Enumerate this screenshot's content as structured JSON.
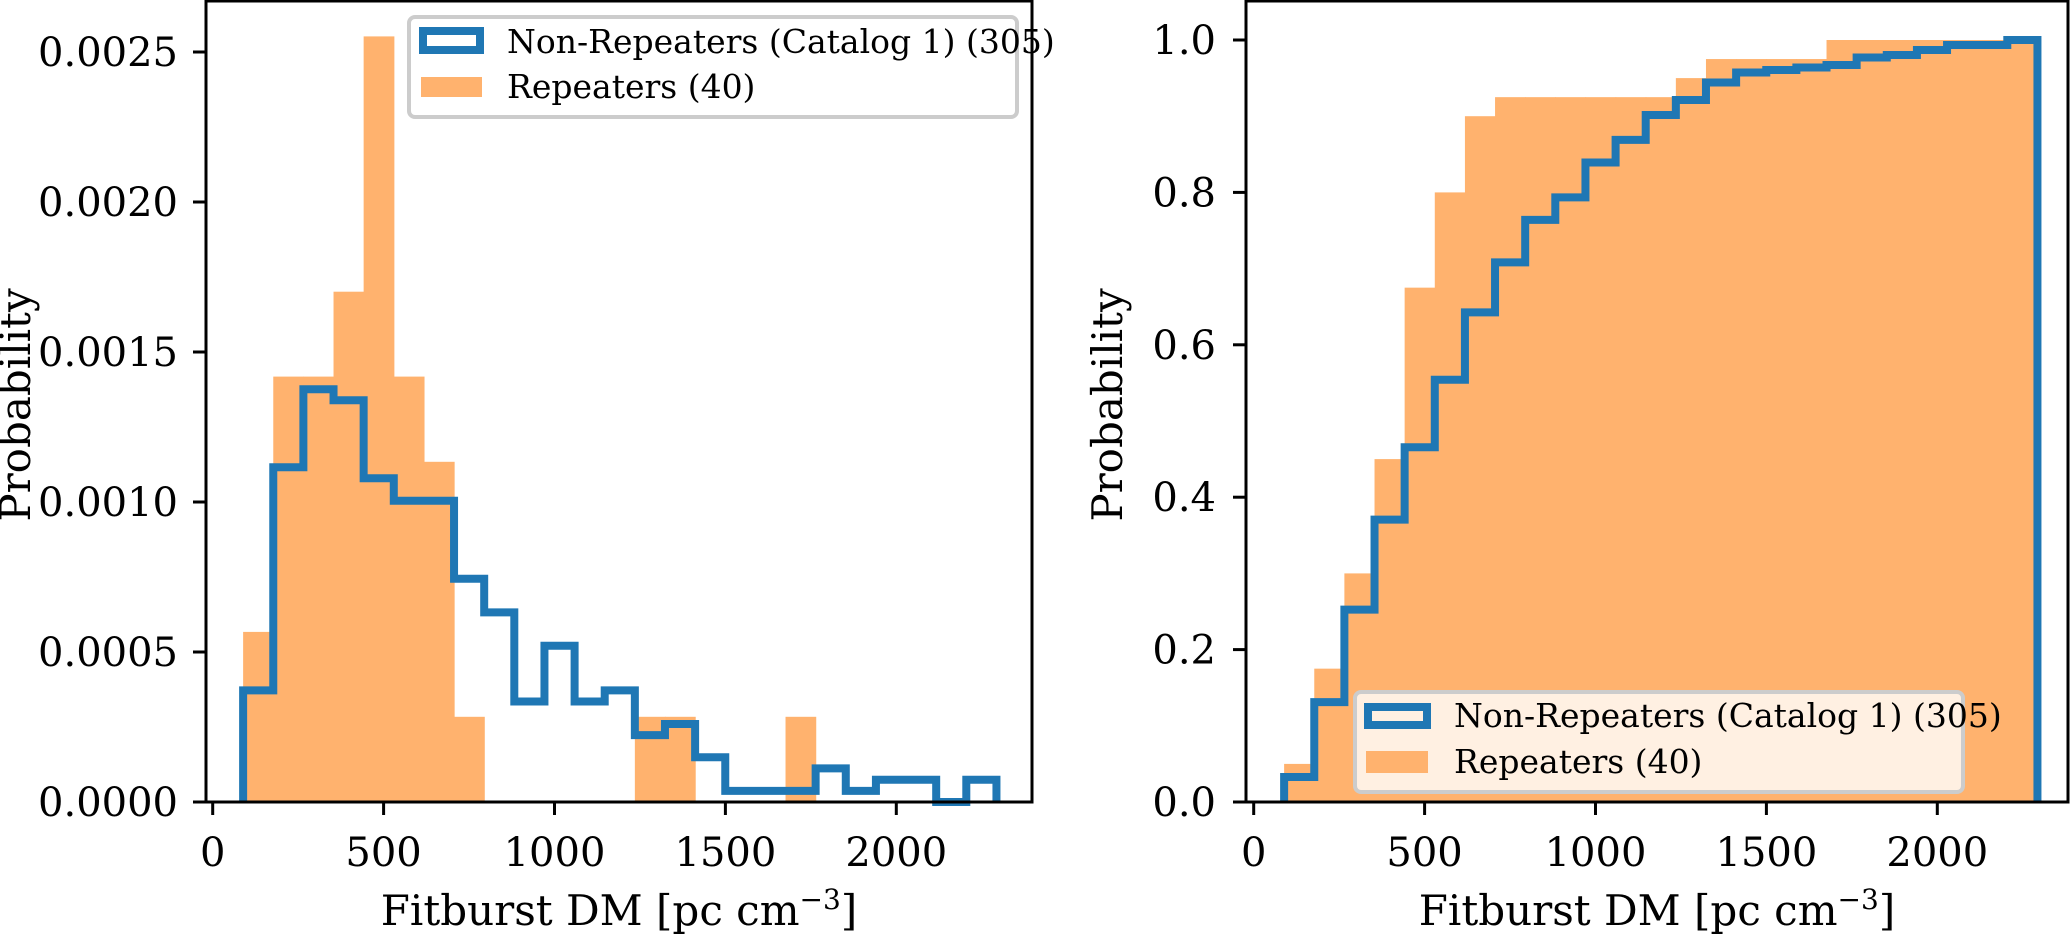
{
  "chart_data": [
    {
      "type": "bar",
      "title": "",
      "xlabel": "Fitburst DM [pc cm",
      "xlabel_sup": "−3",
      "xlabel_end": "]",
      "ylabel": "Probability",
      "xlim": [
        -30,
        2380
      ],
      "ylim": [
        0,
        0.00267
      ],
      "xticks": [
        0,
        500,
        1000,
        1500,
        2000
      ],
      "xtick_labels": [
        "0",
        "500",
        "1000",
        "1500",
        "2000"
      ],
      "yticks": [
        0,
        0.0005,
        0.001,
        0.0015,
        0.002,
        0.0025
      ],
      "ytick_labels": [
        "0.0000",
        "0.0005",
        "0.0010",
        "0.0015",
        "0.0020",
        "0.0025"
      ],
      "legend_placement": "top-right",
      "bin_edges": [
        89,
        177.2,
        265.3,
        353.5,
        441.6,
        529.8,
        618.0,
        706.1,
        794.3,
        882.4,
        970.6,
        1058.8,
        1146.9,
        1235.1,
        1323.2,
        1411.4,
        1499.6,
        1587.7,
        1675.9,
        1764.0,
        1852.2,
        1940.4,
        2028.5,
        2116.7,
        2204.8,
        2293.0
      ],
      "series": [
        {
          "name": "Non-Repeaters (Catalog 1) (305)",
          "style": "step",
          "color": "#1f77b4",
          "values": [
            0.000372,
            0.001116,
            0.001376,
            0.001339,
            0.001079,
            0.001004,
            0.001004,
            0.000744,
            0.000632,
            0.000335,
            0.000521,
            0.000335,
            0.000372,
            0.000223,
            0.00026,
            0.000149,
            3.7e-05,
            3.7e-05,
            3.7e-05,
            0.000112,
            3.7e-05,
            7.4e-05,
            7.4e-05,
            0,
            7.4e-05
          ]
        },
        {
          "name": "Repeaters (40)",
          "style": "filled",
          "color": "#ffb26e",
          "values": [
            0.000567,
            0.001418,
            0.001418,
            0.001701,
            0.002552,
            0.001418,
            0.001134,
            0.000284,
            0,
            0,
            0,
            0,
            0,
            0.000284,
            0.000284,
            0,
            0,
            0,
            0.000284,
            0,
            0,
            0,
            0,
            0,
            0
          ]
        }
      ]
    },
    {
      "type": "bar",
      "title": "",
      "xlabel": "Fitburst DM [pc cm",
      "xlabel_sup": "−3",
      "xlabel_end": "]",
      "ylabel": "Probability",
      "xlim": [
        -30,
        2380
      ],
      "ylim": [
        0,
        1.05
      ],
      "xticks": [
        0,
        500,
        1000,
        1500,
        2000
      ],
      "xtick_labels": [
        "0",
        "500",
        "1000",
        "1500",
        "2000"
      ],
      "yticks": [
        0,
        0.2,
        0.4,
        0.6,
        0.8,
        1.0
      ],
      "ytick_labels": [
        "0.0",
        "0.2",
        "0.4",
        "0.6",
        "0.8",
        "1.0"
      ],
      "legend_placement": "lower-right",
      "cumulative": true,
      "bin_edges": [
        89,
        177.2,
        265.3,
        353.5,
        441.6,
        529.8,
        618.0,
        706.1,
        794.3,
        882.4,
        970.6,
        1058.8,
        1146.9,
        1235.1,
        1323.2,
        1411.4,
        1499.6,
        1587.7,
        1675.9,
        1764.0,
        1852.2,
        1940.4,
        2028.5,
        2116.7,
        2204.8,
        2293.0
      ],
      "series": [
        {
          "name": "Non-Repeaters (Catalog 1) (305)",
          "style": "step",
          "color": "#1f77b4",
          "values": [
            0.0328,
            0.1311,
            0.2525,
            0.3705,
            0.4656,
            0.5541,
            0.6426,
            0.7082,
            0.7639,
            0.7934,
            0.8393,
            0.8689,
            0.9016,
            0.9213,
            0.9443,
            0.9574,
            0.9607,
            0.9639,
            0.9672,
            0.977,
            0.9803,
            0.9869,
            0.9934,
            0.9934,
            1.0
          ]
        },
        {
          "name": "Repeaters (40)",
          "style": "filled",
          "color": "#ffb26e",
          "values": [
            0.05,
            0.175,
            0.3,
            0.45,
            0.675,
            0.8,
            0.9,
            0.925,
            0.925,
            0.925,
            0.925,
            0.925,
            0.925,
            0.95,
            0.975,
            0.975,
            0.975,
            0.975,
            1.0,
            1.0,
            1.0,
            1.0,
            1.0,
            1.0,
            1.0
          ]
        }
      ]
    }
  ]
}
